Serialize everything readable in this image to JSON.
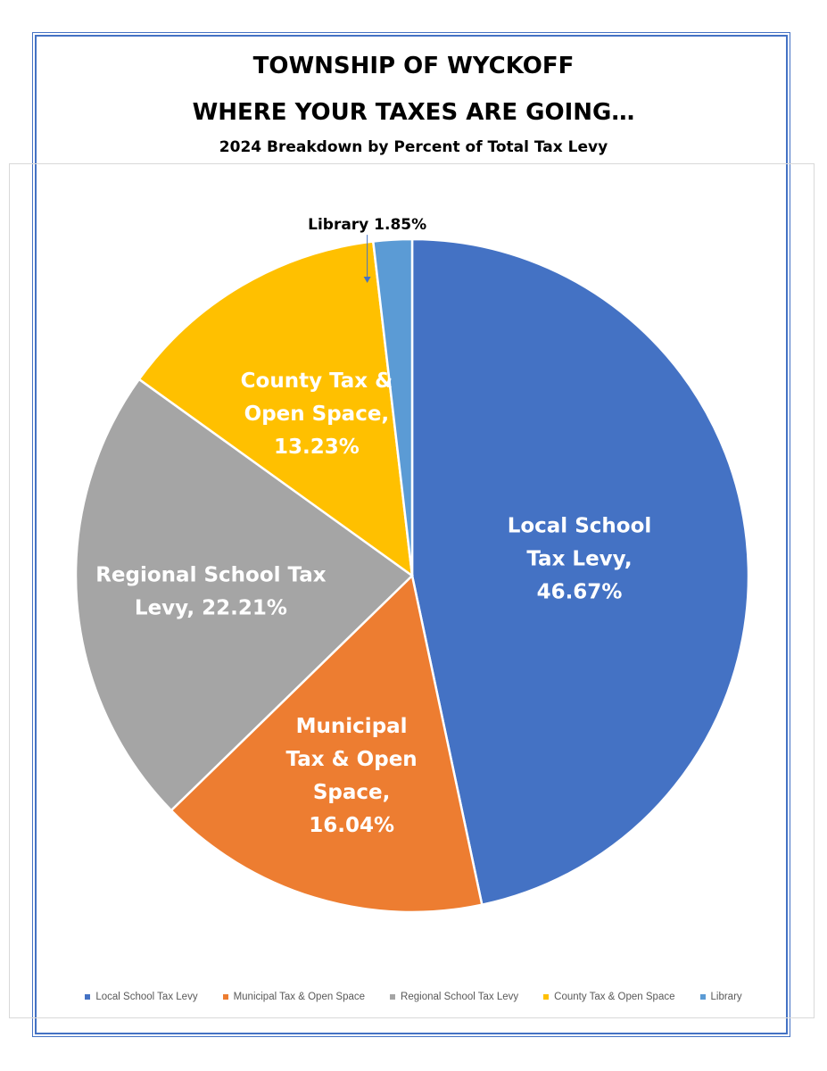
{
  "header": {
    "title_line1": "TOWNSHIP OF WYCKOFF",
    "title_line2": "WHERE YOUR TAXES ARE GOING…",
    "subtitle": "2024 Breakdown by Percent of Total Tax Levy"
  },
  "chart_data": {
    "type": "pie",
    "title": "TOWNSHIP OF WYCKOFF WHERE YOUR TAXES ARE GOING…",
    "subtitle": "2024 Breakdown by Percent of Total Tax Levy",
    "categories": [
      "Local School Tax Levy",
      "Municipal Tax & Open Space",
      "Regional School Tax Levy",
      "County Tax & Open Space",
      "Library"
    ],
    "values": [
      46.67,
      16.04,
      22.21,
      13.23,
      1.85
    ],
    "colors": [
      "#4472c4",
      "#ed7d31",
      "#a5a5a5",
      "#ffc000",
      "#5b9bd5"
    ],
    "start_angle_deg": 0,
    "direction": "clockwise",
    "legend_position": "bottom",
    "data_labels": [
      {
        "lines": [
          "Local School",
          "Tax Levy,",
          "46.67%"
        ]
      },
      {
        "lines": [
          "Municipal",
          "Tax & Open",
          "Space,",
          "16.04%"
        ]
      },
      {
        "lines": [
          "Regional School Tax",
          "Levy, 22.21%"
        ]
      },
      {
        "lines": [
          "County Tax &",
          "Open Space,",
          "13.23%"
        ]
      },
      {
        "lines": [
          "Library 1.85%"
        ],
        "callout": true
      }
    ]
  },
  "legend": {
    "items": [
      {
        "label": "Local School Tax Levy",
        "color": "#4472c4"
      },
      {
        "label": "Municipal Tax & Open Space",
        "color": "#ed7d31"
      },
      {
        "label": "Regional School Tax Levy",
        "color": "#a5a5a5"
      },
      {
        "label": "County Tax & Open Space",
        "color": "#ffc000"
      },
      {
        "label": "Library",
        "color": "#5b9bd5"
      }
    ]
  }
}
